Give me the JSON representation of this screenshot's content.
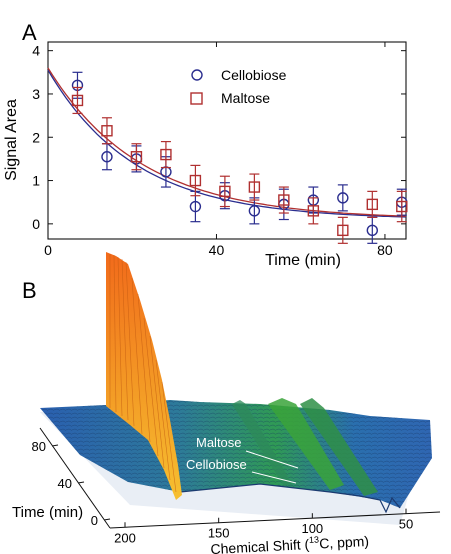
{
  "panel_a": {
    "label": "A",
    "chart_data": {
      "type": "scatter",
      "xlabel": "Time (min)",
      "ylabel": "Signal Area",
      "xlim": [
        0,
        85
      ],
      "ylim": [
        -0.35,
        4.2
      ],
      "xticks": [
        0,
        40,
        80
      ],
      "yticks": [
        0,
        1,
        2,
        3,
        4
      ],
      "grid": false,
      "legend": "top-right",
      "series": [
        {
          "name": "Cellobiose",
          "marker": "circle",
          "color": "#2b2e8f",
          "x": [
            7,
            14,
            21,
            28,
            35,
            42,
            49,
            56,
            63,
            70,
            77,
            84
          ],
          "y": [
            3.2,
            1.55,
            1.5,
            1.2,
            0.4,
            0.65,
            0.3,
            0.45,
            0.55,
            0.6,
            -0.15,
            0.5
          ],
          "err": [
            0.3,
            0.3,
            0.3,
            0.35,
            0.35,
            0.3,
            0.3,
            0.35,
            0.3,
            0.3,
            0.3,
            0.3
          ],
          "fit": [
            3.45,
            0.048,
            0.1
          ]
        },
        {
          "name": "Maltose",
          "marker": "square",
          "color": "#b03030",
          "x": [
            7,
            14,
            21,
            28,
            35,
            42,
            49,
            56,
            63,
            70,
            77,
            84
          ],
          "y": [
            2.85,
            2.15,
            1.55,
            1.6,
            1.0,
            0.75,
            0.85,
            0.55,
            0.3,
            -0.15,
            0.45,
            0.4
          ],
          "err": [
            0.3,
            0.3,
            0.3,
            0.3,
            0.35,
            0.35,
            0.3,
            0.3,
            0.3,
            0.3,
            0.3,
            0.35
          ],
          "fit": [
            3.5,
            0.045,
            0.1
          ]
        }
      ]
    }
  },
  "panel_b": {
    "label": "B",
    "chart_data": {
      "type": "area",
      "xlabel": "Chemical Shift (",
      "xlabel_sup": "13",
      "xlabel_tail": "C, ppm)",
      "ylabel": "Time (min)",
      "xticks": [
        200,
        150,
        100,
        50
      ],
      "yticks": [
        0,
        40,
        80
      ],
      "annotations": [
        "Maltose",
        "Cellobiose"
      ],
      "colors": {
        "surface_blue": "#2a63b5",
        "surface_green": "#2f9a55",
        "peak_orange": "#f08a1c"
      }
    }
  }
}
